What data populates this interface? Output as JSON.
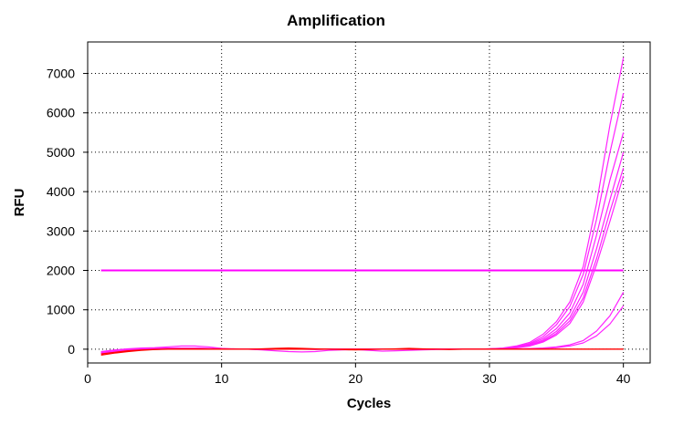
{
  "chart_data": {
    "type": "line",
    "title": "Amplification",
    "xlabel": "Cycles",
    "ylabel": "RFU",
    "xlim": [
      0,
      42
    ],
    "ylim": [
      -350,
      7800
    ],
    "x_ticks": [
      0,
      10,
      20,
      30,
      40
    ],
    "y_ticks": [
      0,
      1000,
      2000,
      3000,
      4000,
      5000,
      6000,
      7000
    ],
    "grid": "dotted",
    "legend": "none",
    "threshold": {
      "value": 2000,
      "x_range": [
        1,
        40
      ],
      "color": "#ff00ff"
    },
    "x": [
      1,
      2,
      3,
      4,
      5,
      6,
      7,
      8,
      9,
      10,
      11,
      12,
      13,
      14,
      15,
      16,
      17,
      18,
      19,
      20,
      21,
      22,
      23,
      24,
      25,
      26,
      27,
      28,
      29,
      30,
      31,
      32,
      33,
      34,
      35,
      36,
      37,
      38,
      39,
      40
    ],
    "series": [
      {
        "color": "#ff22ff",
        "values": [
          -80,
          -30,
          0,
          10,
          20,
          20,
          20,
          15,
          10,
          5,
          0,
          0,
          0,
          0,
          0,
          0,
          0,
          0,
          0,
          0,
          0,
          0,
          0,
          0,
          0,
          0,
          0,
          0,
          0,
          10,
          30,
          80,
          170,
          380,
          700,
          1200,
          2100,
          3700,
          5700,
          7400
        ]
      },
      {
        "color": "#ff22ff",
        "values": [
          -60,
          -20,
          10,
          30,
          40,
          60,
          80,
          80,
          60,
          20,
          10,
          0,
          -10,
          0,
          10,
          0,
          -10,
          0,
          0,
          0,
          0,
          0,
          0,
          0,
          0,
          0,
          0,
          0,
          0,
          10,
          25,
          65,
          140,
          320,
          620,
          1080,
          1900,
          3300,
          5000,
          6500
        ]
      },
      {
        "color": "#ff22ff",
        "values": [
          -100,
          -50,
          -20,
          0,
          10,
          20,
          30,
          30,
          20,
          10,
          0,
          0,
          0,
          0,
          0,
          0,
          0,
          0,
          0,
          0,
          0,
          0,
          0,
          0,
          0,
          0,
          0,
          0,
          0,
          8,
          20,
          55,
          120,
          270,
          520,
          920,
          1650,
          2900,
          4300,
          5500
        ]
      },
      {
        "color": "#ff22ff",
        "values": [
          -90,
          -40,
          -10,
          10,
          20,
          30,
          30,
          30,
          20,
          10,
          0,
          0,
          -20,
          -40,
          -60,
          -70,
          -60,
          -30,
          -20,
          -10,
          -30,
          -50,
          -40,
          -30,
          -20,
          -10,
          0,
          0,
          0,
          5,
          15,
          45,
          100,
          230,
          450,
          800,
          1450,
          2550,
          3800,
          5000
        ]
      },
      {
        "color": "#ff22ff",
        "values": [
          -70,
          -30,
          0,
          10,
          20,
          20,
          20,
          15,
          10,
          5,
          0,
          0,
          0,
          0,
          0,
          0,
          0,
          0,
          0,
          0,
          0,
          0,
          0,
          0,
          0,
          0,
          0,
          0,
          0,
          5,
          12,
          40,
          90,
          200,
          400,
          720,
          1300,
          2300,
          3500,
          4600
        ]
      },
      {
        "color": "#ff22ff",
        "values": [
          -120,
          -60,
          -20,
          0,
          10,
          20,
          20,
          15,
          10,
          5,
          0,
          0,
          0,
          0,
          0,
          0,
          0,
          0,
          0,
          0,
          0,
          0,
          0,
          0,
          0,
          0,
          0,
          0,
          0,
          3,
          10,
          35,
          80,
          180,
          360,
          650,
          1200,
          2150,
          3250,
          4400
        ]
      },
      {
        "color": "#ff22ff",
        "values": [
          -100,
          -50,
          -10,
          0,
          10,
          20,
          20,
          10,
          10,
          5,
          0,
          0,
          0,
          0,
          0,
          0,
          0,
          0,
          0,
          0,
          0,
          0,
          0,
          0,
          0,
          0,
          0,
          0,
          0,
          0,
          3,
          8,
          15,
          30,
          60,
          110,
          220,
          460,
          850,
          1450
        ]
      },
      {
        "color": "#ff22ff",
        "values": [
          -80,
          -40,
          -10,
          0,
          10,
          10,
          10,
          10,
          5,
          0,
          0,
          0,
          0,
          0,
          0,
          0,
          0,
          0,
          0,
          0,
          0,
          0,
          0,
          0,
          0,
          0,
          0,
          0,
          0,
          0,
          2,
          5,
          10,
          20,
          40,
          80,
          160,
          340,
          640,
          1100
        ]
      },
      {
        "color": "#ff0000",
        "values": [
          -150,
          -100,
          -60,
          -30,
          -10,
          0,
          0,
          0,
          0,
          0,
          0,
          0,
          0,
          0,
          0,
          0,
          0,
          0,
          0,
          0,
          0,
          0,
          0,
          0,
          0,
          0,
          0,
          0,
          0,
          0,
          0,
          0,
          0,
          0,
          0,
          0,
          0,
          0,
          0,
          0
        ]
      },
      {
        "color": "#ff0000",
        "values": [
          -120,
          -80,
          -40,
          -20,
          -5,
          5,
          10,
          10,
          5,
          5,
          0,
          0,
          10,
          20,
          30,
          20,
          10,
          0,
          -10,
          -20,
          -10,
          0,
          10,
          20,
          10,
          0,
          -10,
          0,
          0,
          0,
          0,
          0,
          0,
          0,
          0,
          0,
          0,
          0,
          0,
          0
        ]
      }
    ]
  }
}
